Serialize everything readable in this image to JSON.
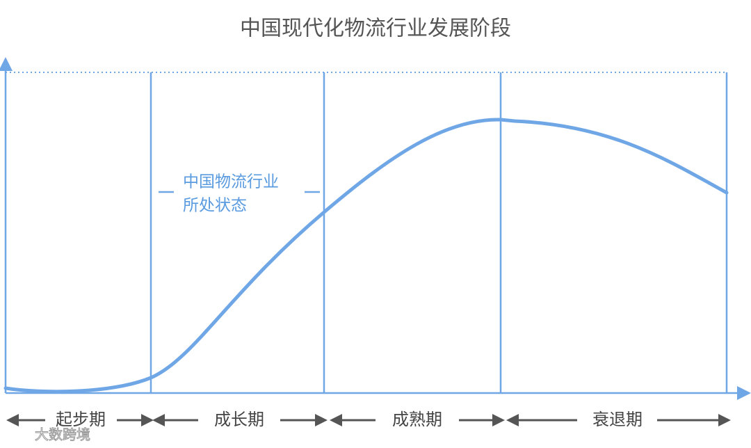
{
  "title": "中国现代化物流行业发展阶段",
  "annotation": [
    "中国物流行业",
    "所处状态"
  ],
  "stages": [
    "起步期",
    "成长期",
    "成熟期",
    "衰退期"
  ],
  "watermark": "大数跨境"
}
